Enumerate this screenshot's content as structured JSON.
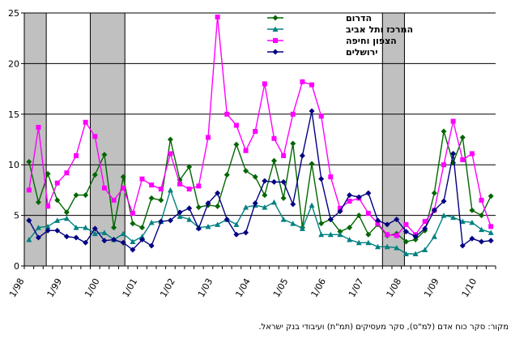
{
  "chart_data": {
    "type": "line",
    "ylim": [
      0,
      25
    ],
    "yticks": [
      "0",
      "5",
      "10",
      "15",
      "20",
      "25"
    ],
    "x_tick_labels": [
      "1/98",
      "1/99",
      "1/00",
      "1/01",
      "1/02",
      "1/03",
      "1/04",
      "1/05",
      "1/06",
      "1/07",
      "1/08",
      "1/09",
      "1/10"
    ],
    "legend_position": "top-center",
    "grid": "horizontal",
    "shaded_periods": [
      [
        0,
        2.33
      ],
      [
        7.0,
        10.67
      ],
      [
        38.0,
        40.33
      ]
    ],
    "series": [
      {
        "name": "הדרום",
        "color": "#006600",
        "marker": "diamond",
        "values": [
          10.3,
          6.3,
          9.1,
          6.5,
          5.3,
          7.0,
          7.0,
          9.0,
          11.0,
          3.8,
          8.8,
          4.2,
          3.8,
          6.7,
          6.5,
          12.5,
          8.5,
          9.8,
          5.8,
          6.0,
          5.9,
          9.0,
          12.0,
          9.4,
          8.8,
          7.0,
          10.4,
          6.7,
          12.1,
          3.8,
          10.1,
          4.2,
          4.6,
          3.4,
          3.8,
          5.0,
          3.1,
          4.1,
          3.0,
          3.2,
          2.4,
          2.6,
          3.5,
          7.2,
          13.3,
          10.2,
          12.7,
          5.5,
          5.0,
          6.9
        ]
      },
      {
        "name": "המרכז ותל אביב",
        "color": "#008080",
        "marker": "triangle",
        "values": [
          2.6,
          3.8,
          3.9,
          4.5,
          4.7,
          3.8,
          3.8,
          3.2,
          3.3,
          2.6,
          3.2,
          2.4,
          2.9,
          4.3,
          4.4,
          7.5,
          4.9,
          4.6,
          3.8,
          3.9,
          4.1,
          4.6,
          4.1,
          5.8,
          6.0,
          5.8,
          6.3,
          4.6,
          4.2,
          3.7,
          6.0,
          3.1,
          3.1,
          3.1,
          2.6,
          2.3,
          2.3,
          1.9,
          1.9,
          1.8,
          1.2,
          1.2,
          1.6,
          2.9,
          5.0,
          4.8,
          4.4,
          4.3,
          3.6,
          3.3
        ]
      },
      {
        "name": "הצפון וחיפה",
        "color": "#ff00ff",
        "marker": "square",
        "values": [
          7.5,
          13.7,
          5.9,
          8.2,
          9.2,
          10.9,
          14.2,
          12.8,
          7.7,
          6.5,
          7.7,
          5.2,
          8.6,
          8.0,
          7.6,
          11.1,
          8.1,
          7.6,
          7.9,
          12.7,
          24.6,
          15.0,
          13.9,
          11.4,
          13.3,
          18.0,
          12.6,
          10.9,
          15.0,
          18.2,
          17.9,
          14.8,
          8.8,
          5.7,
          6.4,
          6.7,
          5.2,
          4.2,
          3.1,
          3.0,
          4.1,
          3.1,
          4.4,
          5.5,
          10.0,
          14.3,
          10.5,
          11.1,
          6.5,
          3.9
        ]
      },
      {
        "name": "ירושלים",
        "color": "#000080",
        "marker": "diamond",
        "values": [
          4.5,
          2.8,
          3.5,
          3.5,
          2.9,
          2.8,
          2.3,
          3.7,
          2.5,
          2.6,
          2.3,
          1.6,
          2.6,
          2.0,
          4.4,
          4.5,
          5.3,
          5.7,
          3.7,
          6.2,
          7.2,
          4.6,
          3.1,
          3.3,
          6.2,
          8.4,
          8.3,
          8.3,
          6.1,
          10.9,
          15.3,
          8.6,
          4.6,
          5.4,
          7.0,
          6.8,
          7.2,
          4.5,
          4.1,
          4.6,
          3.4,
          2.9,
          3.7,
          5.5,
          6.4,
          11.1,
          2.0,
          2.7,
          2.4,
          2.5
        ]
      }
    ]
  },
  "source_note": "מקור: סקר כוח אדם (למ\"ס), סקר מעסיקים (תמ\"ת) ועיבודי בנק ישראל."
}
